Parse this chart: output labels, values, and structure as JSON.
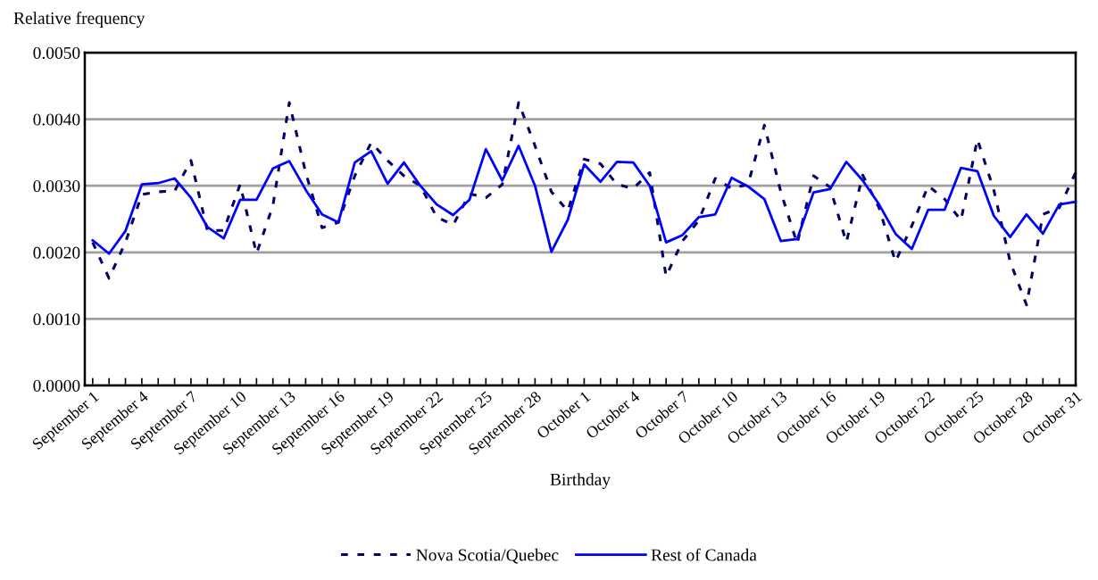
{
  "chart_data": {
    "type": "line",
    "xlabel": "Birthday",
    "ylabel": "Relative frequency",
    "categories": [
      "September 1",
      null,
      null,
      "September 4",
      null,
      null,
      "September 7",
      null,
      null,
      "September 10",
      null,
      null,
      "September 13",
      null,
      null,
      "September 16",
      null,
      null,
      "September 19",
      null,
      null,
      "September 22",
      null,
      null,
      "September 25",
      null,
      null,
      "September 28",
      null,
      null,
      "October 1",
      null,
      null,
      "October 4",
      null,
      null,
      "October 7",
      null,
      null,
      "October 10",
      null,
      null,
      "October 13",
      null,
      null,
      "October 16",
      null,
      null,
      "October 19",
      null,
      null,
      "October 22",
      null,
      null,
      "October 25",
      null,
      null,
      "October 28",
      null,
      null,
      "October 31"
    ],
    "series": [
      {
        "name": "Nova Scotia/Quebec",
        "color": "#000066",
        "line_style": "dotted",
        "values": [
          0.00215,
          0.00161,
          0.00215,
          0.00287,
          0.00291,
          0.00292,
          0.00338,
          0.00233,
          0.00233,
          0.00302,
          0.00198,
          0.0027,
          0.00425,
          0.0032,
          0.00237,
          0.00245,
          0.00315,
          0.00365,
          0.00338,
          0.00315,
          0.003,
          0.00253,
          0.00241,
          0.00288,
          0.00282,
          0.00302,
          0.00425,
          0.0036,
          0.00291,
          0.00262,
          0.0034,
          0.00333,
          0.00302,
          0.00296,
          0.0032,
          0.00164,
          0.00217,
          0.00248,
          0.00311,
          0.00296,
          0.00302,
          0.00391,
          0.00291,
          0.00213,
          0.00315,
          0.00298,
          0.00215,
          0.00316,
          0.00267,
          0.00186,
          0.0024,
          0.003,
          0.0028,
          0.00248,
          0.0037,
          0.00294,
          0.00186,
          0.00121,
          0.00257,
          0.00267,
          0.0032
        ]
      },
      {
        "name": "Rest of Canada",
        "color": "#0000ff",
        "line_style": "solid",
        "values": [
          0.00218,
          0.00198,
          0.00232,
          0.00302,
          0.00304,
          0.00311,
          0.00282,
          0.00238,
          0.00221,
          0.00279,
          0.00279,
          0.00326,
          0.00337,
          0.00294,
          0.00257,
          0.00245,
          0.00335,
          0.00352,
          0.00303,
          0.00335,
          0.003,
          0.00272,
          0.00256,
          0.00279,
          0.00355,
          0.00308,
          0.0036,
          0.003,
          0.00201,
          0.00249,
          0.00332,
          0.00306,
          0.00336,
          0.00335,
          0.003,
          0.00215,
          0.00226,
          0.00253,
          0.00257,
          0.00312,
          0.00299,
          0.0028,
          0.00217,
          0.0022,
          0.0029,
          0.00295,
          0.00336,
          0.00308,
          0.00272,
          0.00228,
          0.00205,
          0.00264,
          0.00264,
          0.00327,
          0.00322,
          0.00255,
          0.00223,
          0.00257,
          0.00228,
          0.00272,
          0.00276
        ]
      }
    ],
    "ylim": [
      0,
      0.005
    ],
    "yticks": [
      {
        "value": 0,
        "label": "0.0000"
      },
      {
        "value": 0.001,
        "label": "0.0010"
      },
      {
        "value": 0.002,
        "label": "0.0020"
      },
      {
        "value": 0.003,
        "label": "0.0030"
      },
      {
        "value": 0.004,
        "label": "0.0040"
      },
      {
        "value": 0.005,
        "label": "0.0050"
      }
    ],
    "grid": "y",
    "legend": "bottom",
    "marker": "none"
  }
}
